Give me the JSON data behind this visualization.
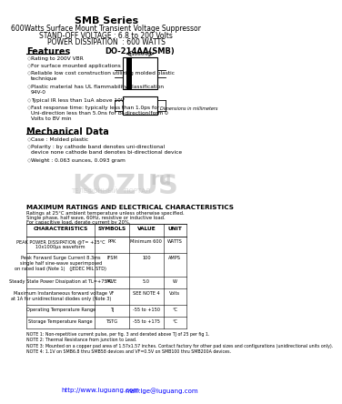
{
  "title": "SMB Series",
  "subtitle": "600Watts Surface Mount Transient Voltage Suppressor",
  "line1": "STAND-OFF VOLTAGE : 6.8 to 200 Volts",
  "line2": "POWER DISSIPATION  : 600 WATTS",
  "package": "DO-214AA(SMB)",
  "features_title": "Features",
  "features": [
    "Rating to 200V VBR",
    "For surface mounted applications",
    "Reliable low cost construction utilizing molded plastic\ntechnique",
    "Plastic material has UL flammability classification\n94V-0",
    "Typical IR less than 1uA above 10V",
    "Fast response time: typically less than 1.0ps for\nUni-direction less than 5.0ns for Bi-direction(form 0\nVolts to BV min"
  ],
  "mech_title": "Mechanical Data",
  "mech_items": [
    "Case : Molded plastic",
    "Polarity : by cathode band denotes uni-directional\ndevice none cathode band denotes bi-directional device",
    "Weight : 0.063 ounces, 0.093 gram"
  ],
  "table_title": "MAXIMUM RATINGS AND ELECTRICAL CHARACTERISTICS",
  "table_note1": "Ratings at 25°C ambient temperature unless otherwise specified.",
  "table_note2": "Single phase, half wave, 60Hz, resistive or inductive load.",
  "table_note3": "For capacitive load, derate current by 20%.",
  "table_headers": [
    "CHARACTERISTICS",
    "SYMBOLS",
    "VALUE",
    "UNIT"
  ],
  "table_rows": [
    [
      "PEAK POWER DISSIPATION @T= +25°C\n10x1000μs waveform",
      "PPK",
      "Minimum 600",
      "WATTS"
    ],
    [
      "Peak Forward Surge Current 8.3ms\nsingle half sine-wave superimposed\non rated load (Note 1)   (JEDEC MIL STD)",
      "IFSM",
      "100",
      "AMPS"
    ],
    [
      "Steady State Power Dissipation at TL=+75°C",
      "PAVE",
      "5.0",
      "W"
    ],
    [
      "Maximum Instantaneous forward voltage\nat 1A for unidirectional diodes only (Note 3)",
      "VF",
      "SEE NOTE 4",
      "Volts"
    ],
    [
      "Operating Temperature Range",
      "TJ",
      "-55 to +150",
      "°C"
    ],
    [
      "Storage Temperature Range",
      "TSTG",
      "-55 to +175",
      "°C"
    ]
  ],
  "notes": [
    "NOTE 1: Non-repetitive current pulse, per fig. 3 and derated above TJ of 25 per fig 1.",
    "NOTE 2: Thermal Resistance from junction to Lead.",
    "NOTE 3: Mounted on a copper pad area of 1.57x1.57 inches. Contact factory for other pad sizes and configurations (unidirectional units only).",
    "NOTE 4: 1.1V on SMB6.8 thru SMB58 devices and VF=0.5V on SMB100 thru SMB200A devices."
  ],
  "footer_web": "http://www.luguang.com",
  "footer_email": "mail:lge@luguang.com",
  "watermark": "KOZUS",
  "watermark_sub": "ru",
  "portal_text": "ТЕЛЕФОННЫЙ   ПОРТАЛ",
  "bg_color": "#ffffff"
}
